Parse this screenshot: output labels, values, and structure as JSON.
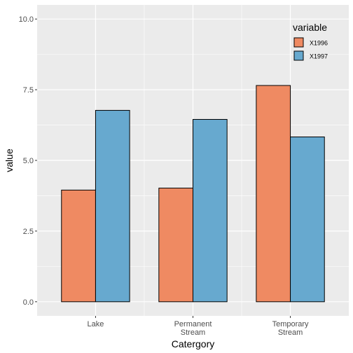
{
  "chart_data": {
    "type": "bar",
    "categories": [
      [
        "Lake"
      ],
      [
        "Permanent",
        "Stream"
      ],
      [
        "Temporary",
        "Stream"
      ]
    ],
    "series": [
      {
        "name": "X1996",
        "color": "#EF8A62",
        "values": [
          3.95,
          4.02,
          7.65
        ]
      },
      {
        "name": "X1997",
        "color": "#67A9CF",
        "values": [
          6.77,
          6.45,
          5.83
        ]
      }
    ],
    "title": "",
    "xlabel": "Catergory",
    "ylabel": "value",
    "ylim": [
      -0.5,
      10.5
    ],
    "yticks": [
      0.0,
      2.5,
      5.0,
      7.5,
      10.0
    ],
    "ytick_labels": [
      "0.0",
      "2.5",
      "5.0",
      "7.5",
      "10.0"
    ],
    "legend_title": "variable",
    "legend_position": "top-right",
    "grid": true,
    "panel_color": "#EBEBEB",
    "grid_color": "#FFFFFF",
    "bar_outline_color": "#000000"
  }
}
